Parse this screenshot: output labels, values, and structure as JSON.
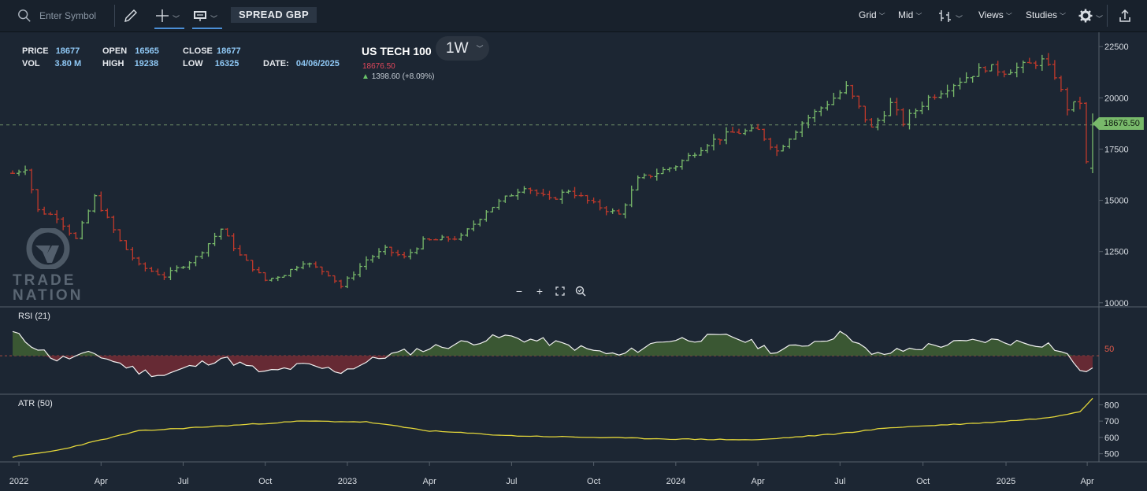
{
  "toolbar": {
    "search_placeholder": "Enter Symbol",
    "instrument": "SPREAD GBP",
    "menus": [
      "Grid",
      "Mid",
      "Views",
      "Studies"
    ],
    "icons": [
      "search-icon",
      "pencil-icon",
      "crosshair-icon",
      "chart-type-icon",
      "bars-icon",
      "gear-icon",
      "share-icon"
    ]
  },
  "info": {
    "price_label": "PRICE",
    "price": "18677",
    "vol_label": "VOL",
    "vol": "3.80 M",
    "open_label": "OPEN",
    "open": "16565",
    "high_label": "HIGH",
    "high": "19238",
    "close_label": "CLOSE",
    "close": "18677",
    "low_label": "LOW",
    "low": "16325",
    "date_label": "DATE:",
    "date": "04/06/2025"
  },
  "symbol": {
    "name": "US TECH 100",
    "timeframe": "1W",
    "price": "18676.50",
    "change": "1398.60 (+8.09%)"
  },
  "price_axis": [
    "22500",
    "20000",
    "17500",
    "15000",
    "12500",
    "10000"
  ],
  "last_price_tag": "18676.50",
  "rsi": {
    "label": "RSI (21)",
    "level": "50"
  },
  "atr": {
    "label": "ATR (50)",
    "ticks": [
      "800",
      "700",
      "600",
      "500"
    ]
  },
  "time_axis": [
    "2022",
    "Apr",
    "Jul",
    "Oct",
    "2023",
    "Apr",
    "Jul",
    "Oct",
    "2024",
    "Apr",
    "Jul",
    "Oct",
    "2025",
    "Apr"
  ],
  "logo": {
    "line1": "TRADE",
    "line2": "NATION"
  },
  "colors": {
    "up": "#78b96a",
    "down": "#c0392b",
    "rsi_up_fill": "#3c5a34",
    "rsi_down_fill": "#6a2a35",
    "atr_line": "#e3d63a",
    "tag": "#78b96a"
  },
  "chart_data": {
    "type": "ohlc-weekly",
    "anchors": [
      [
        "2021-12-27",
        16320
      ],
      [
        "2022-01-10",
        16600
      ],
      [
        "2022-01-24",
        14500
      ],
      [
        "2022-02-14",
        14200
      ],
      [
        "2022-03-07",
        13100
      ],
      [
        "2022-03-28",
        15150
      ],
      [
        "2022-04-25",
        13000
      ],
      [
        "2022-05-16",
        11800
      ],
      [
        "2022-06-13",
        11300
      ],
      [
        "2022-07-18",
        12200
      ],
      [
        "2022-08-15",
        13600
      ],
      [
        "2022-09-05",
        12300
      ],
      [
        "2022-10-03",
        11100
      ],
      [
        "2022-10-24",
        11400
      ],
      [
        "2022-11-14",
        12000
      ],
      [
        "2022-12-12",
        11400
      ],
      [
        "2022-12-26",
        10800
      ],
      [
        "2023-01-23",
        12100
      ],
      [
        "2023-02-13",
        12600
      ],
      [
        "2023-03-06",
        12200
      ],
      [
        "2023-03-27",
        13000
      ],
      [
        "2023-05-08",
        13200
      ],
      [
        "2023-06-05",
        14500
      ],
      [
        "2023-06-26",
        15100
      ],
      [
        "2023-07-17",
        15700
      ],
      [
        "2023-08-14",
        15000
      ],
      [
        "2023-09-04",
        15500
      ],
      [
        "2023-10-02",
        14800
      ],
      [
        "2023-10-30",
        14300
      ],
      [
        "2023-11-20",
        16000
      ],
      [
        "2024-01-01",
        16700
      ],
      [
        "2024-02-05",
        17800
      ],
      [
        "2024-03-04",
        18300
      ],
      [
        "2024-04-01",
        18400
      ],
      [
        "2024-04-22",
        17400
      ],
      [
        "2024-05-20",
        18800
      ],
      [
        "2024-06-24",
        20000
      ],
      [
        "2024-07-08",
        20500
      ],
      [
        "2024-08-05",
        18500
      ],
      [
        "2024-08-26",
        19700
      ],
      [
        "2024-09-09",
        18800
      ],
      [
        "2024-10-07",
        20000
      ],
      [
        "2024-11-04",
        20700
      ],
      [
        "2024-12-09",
        21500
      ],
      [
        "2024-12-30",
        21300
      ],
      [
        "2025-02-10",
        21800
      ],
      [
        "2025-02-24",
        21100
      ],
      [
        "2025-03-10",
        19500
      ],
      [
        "2025-03-24",
        19800
      ],
      [
        "2025-03-31",
        16800
      ],
      [
        "2025-04-07",
        18677
      ]
    ],
    "price_range": [
      9800,
      23200
    ],
    "rsi_anchors": [
      [
        "2021-12-27",
        62
      ],
      [
        "2022-01-24",
        54
      ],
      [
        "2022-02-14",
        48
      ],
      [
        "2022-03-28",
        51
      ],
      [
        "2022-05-16",
        42
      ],
      [
        "2022-06-13",
        40
      ],
      [
        "2022-08-15",
        49
      ],
      [
        "2022-10-03",
        41
      ],
      [
        "2022-11-14",
        45
      ],
      [
        "2022-12-26",
        42
      ],
      [
        "2023-02-13",
        50
      ],
      [
        "2023-04-03",
        54
      ],
      [
        "2023-06-26",
        60
      ],
      [
        "2023-08-14",
        57
      ],
      [
        "2023-10-30",
        50
      ],
      [
        "2023-12-18",
        58
      ],
      [
        "2024-03-04",
        60
      ],
      [
        "2024-04-22",
        52
      ],
      [
        "2024-07-08",
        62
      ],
      [
        "2024-08-05",
        50
      ],
      [
        "2024-10-07",
        55
      ],
      [
        "2024-12-09",
        58
      ],
      [
        "2025-02-17",
        56
      ],
      [
        "2025-03-10",
        50
      ],
      [
        "2025-03-31",
        40
      ],
      [
        "2025-04-07",
        45
      ]
    ],
    "rsi_range": [
      30,
      75
    ],
    "atr_anchors": [
      [
        "2021-12-27",
        480
      ],
      [
        "2022-02-14",
        520
      ],
      [
        "2022-05-16",
        640
      ],
      [
        "2022-08-15",
        670
      ],
      [
        "2022-11-14",
        700
      ],
      [
        "2023-01-23",
        695
      ],
      [
        "2023-04-03",
        640
      ],
      [
        "2023-07-03",
        610
      ],
      [
        "2023-10-02",
        600
      ],
      [
        "2024-01-01",
        590
      ],
      [
        "2024-04-01",
        585
      ],
      [
        "2024-06-24",
        620
      ],
      [
        "2024-08-26",
        660
      ],
      [
        "2024-12-09",
        690
      ],
      [
        "2025-02-17",
        720
      ],
      [
        "2025-03-24",
        760
      ],
      [
        "2025-04-07",
        840
      ]
    ],
    "atr_range": [
      450,
      860
    ],
    "date_range": [
      "2021-12-13",
      "2025-04-14"
    ]
  }
}
